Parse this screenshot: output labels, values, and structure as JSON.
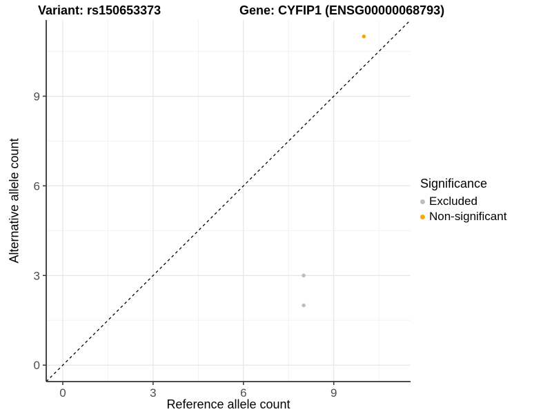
{
  "chart_data": {
    "type": "scatter",
    "titles": {
      "variant": "Variant: rs150653373",
      "gene": "Gene: CYFIP1 (ENSG00000068793)"
    },
    "xlabel": "Reference allele count",
    "ylabel": "Alternative allele count",
    "xlim": [
      -0.55,
      11.55
    ],
    "ylim": [
      -0.55,
      11.55
    ],
    "x_ticks": [
      0,
      3,
      6,
      9
    ],
    "y_ticks": [
      0,
      3,
      6,
      9
    ],
    "x_minor_ticks": [
      1.5,
      4.5,
      7.5,
      10.5
    ],
    "y_minor_ticks": [
      1.5,
      4.5,
      7.5,
      10.5
    ],
    "grid": true,
    "series": [
      {
        "name": "Excluded",
        "color": "#BEBEBE",
        "points": [
          [
            8,
            3
          ],
          [
            8,
            2
          ]
        ]
      },
      {
        "name": "Non-significant",
        "color": "#FFA500",
        "points": [
          [
            10,
            11
          ]
        ]
      }
    ],
    "identity_line": {
      "slope": 1,
      "intercept": 0,
      "style": "dashed",
      "color": "#000000"
    },
    "legend": {
      "title": "Significance",
      "position": "right"
    },
    "colors": {
      "grid_major": "#E3E3E3",
      "grid_minor": "#F0F0F0",
      "axis_line": "#333333",
      "tick_label": "#4D4D4D",
      "background": "#FFFFFF"
    }
  }
}
